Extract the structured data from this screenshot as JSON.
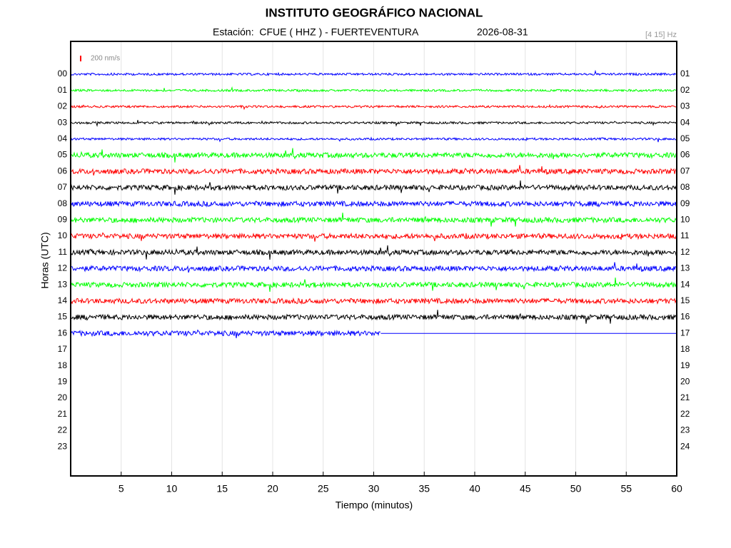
{
  "chart_data": {
    "type": "helicorder",
    "title": "INSTITUTO GEOGRÁFICO NACIONAL",
    "station": "Estación:  CFUE ( HHZ ) - FUERTEVENTURA",
    "date": "2026-08-31",
    "filter": "[4 15] Hz",
    "scale_label": "200 nm/s",
    "scale_color": "#ff0000",
    "xlabel": "Tiempo (minutos)",
    "ylabel": "Horas (UTC)",
    "xlim": [
      0,
      60
    ],
    "xticks": [
      5,
      10,
      15,
      20,
      25,
      30,
      35,
      40,
      45,
      50,
      55,
      60
    ],
    "grid": true,
    "left_labels": [
      "00",
      "01",
      "02",
      "03",
      "04",
      "05",
      "06",
      "07",
      "08",
      "09",
      "10",
      "11",
      "12",
      "13",
      "14",
      "15",
      "16",
      "17",
      "18",
      "19",
      "20",
      "21",
      "22",
      "23"
    ],
    "right_labels": [
      "01",
      "02",
      "03",
      "04",
      "05",
      "06",
      "07",
      "08",
      "09",
      "10",
      "11",
      "12",
      "13",
      "14",
      "15",
      "16",
      "17",
      "18",
      "19",
      "20",
      "21",
      "22",
      "23",
      "24"
    ],
    "trace_colors": [
      "#0000ff",
      "#00ff00",
      "#ff0000",
      "#000000",
      "#0000ff",
      "#00ff00",
      "#ff0000",
      "#000000",
      "#0000ff",
      "#00ff00",
      "#ff0000",
      "#000000",
      "#0000ff",
      "#00ff00",
      "#ff0000",
      "#000000",
      "#0000ff"
    ],
    "last_trace_end": 30.7
  }
}
